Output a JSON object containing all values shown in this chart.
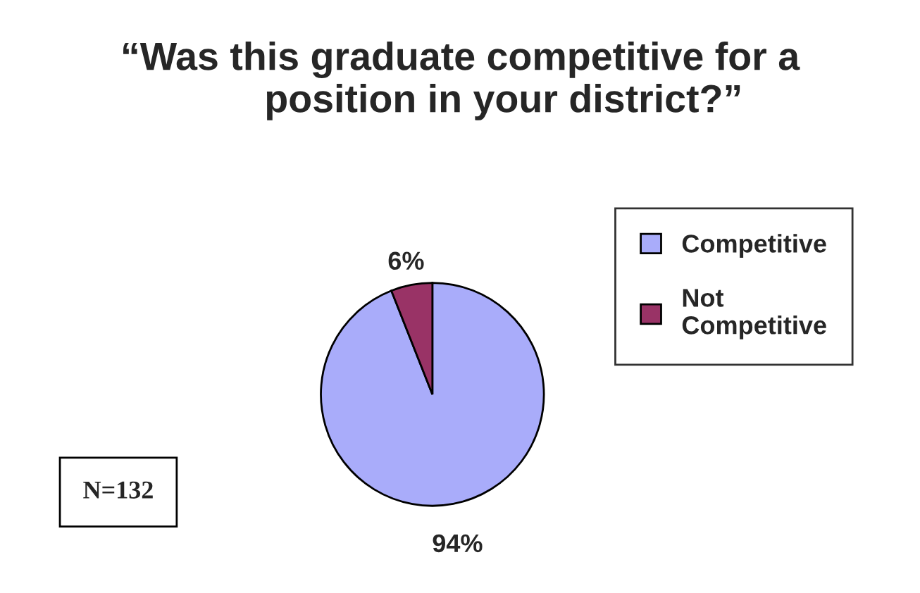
{
  "chart_data": {
    "type": "pie",
    "title": "“Was this graduate competitive for a\n        position in your district?”",
    "categories": [
      "Competitive",
      "Not\nCompetitive"
    ],
    "values": [
      94,
      6
    ],
    "colors": [
      "#a9acfa",
      "#993366"
    ],
    "value_labels": [
      "94%",
      "6%"
    ],
    "legend": "right",
    "annotations": [
      "N=132"
    ]
  }
}
